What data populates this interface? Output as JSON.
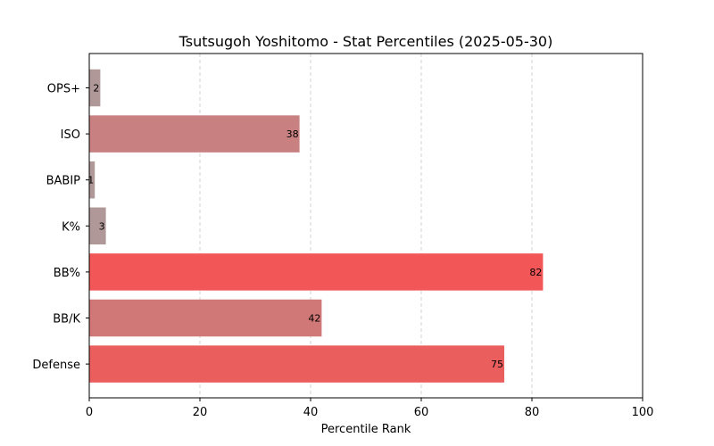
{
  "chart_data": {
    "type": "bar",
    "orientation": "horizontal",
    "title": "Tsutsugoh Yoshitomo - Stat Percentiles (2025-05-30)",
    "xlabel": "Percentile Rank",
    "ylabel": "",
    "xlim": [
      0,
      100
    ],
    "xticks": [
      0,
      20,
      40,
      60,
      80,
      100
    ],
    "grid": "x-dashed",
    "categories": [
      "OPS+",
      "ISO",
      "BABIP",
      "K%",
      "BB%",
      "BB/K",
      "Defense"
    ],
    "values": [
      2,
      38,
      1,
      3,
      82,
      42,
      75
    ],
    "colors": [
      "#b09898",
      "#c88080",
      "#b09898",
      "#b09898",
      "#f25656",
      "#d07878",
      "#ea5e5e"
    ]
  }
}
